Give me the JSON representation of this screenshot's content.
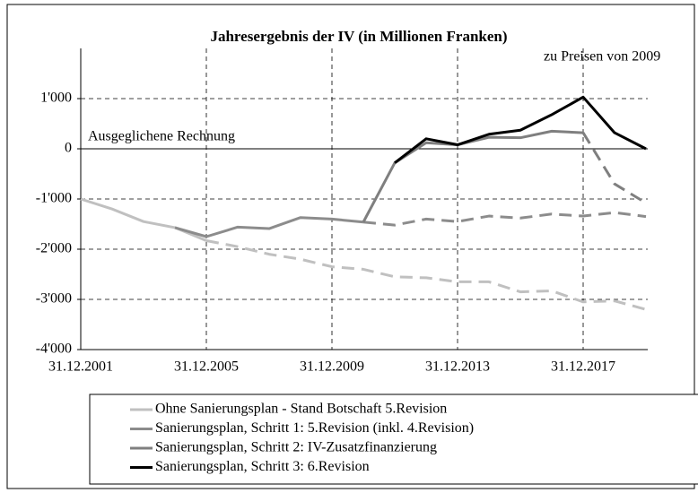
{
  "chart_data": {
    "type": "line",
    "title": "Jahresergebnis der IV (in Millionen Franken)",
    "subtitle": "zu Preisen von 2009",
    "annotation": "Ausgeglichene Rechnung",
    "categories": [
      "31.12.2001",
      null,
      null,
      null,
      "31.12.2005",
      null,
      null,
      null,
      "31.12.2009",
      null,
      null,
      null,
      "31.12.2013",
      null,
      null,
      null,
      "31.12.2017",
      null,
      null
    ],
    "ylim": [
      -4000,
      2000
    ],
    "yticks": [
      {
        "value": 1000,
        "label": "1'000"
      },
      0,
      {
        "value": -1000,
        "label": "-1'000"
      },
      {
        "value": -2000,
        "label": "-2'000"
      },
      {
        "value": -3000,
        "label": "-3'000"
      },
      {
        "value": -4000,
        "label": "-4'000"
      }
    ],
    "grid": true,
    "series": [
      {
        "name": "Ohne Sanierungsplan - Stand Botschaft 5.Revision",
        "color": "#c0c0c0",
        "dashed_from": 4,
        "values": [
          -1000,
          -1200,
          -1450,
          -1570,
          -1830,
          -1950,
          -2100,
          -2200,
          -2350,
          -2400,
          -2550,
          -2570,
          -2650,
          -2650,
          -2850,
          -2830,
          -3050,
          -3030,
          -3200
        ]
      },
      {
        "name": "Sanierungsplan, Schritt 1: 5.Revision (inkl. 4.Revision)",
        "color": "#8c8c8c",
        "dashed_from": 9,
        "values": [
          null,
          null,
          null,
          -1570,
          -1750,
          -1560,
          -1590,
          -1370,
          -1400,
          -1460,
          -1520,
          -1400,
          -1450,
          -1340,
          -1380,
          -1300,
          -1340,
          -1270,
          -1350
        ]
      },
      {
        "name": "Sanierungsplan, Schritt 2: IV-Zusatzfinanzierung",
        "color": "#7f7f7f",
        "dashed_from": 16,
        "values": [
          null,
          null,
          null,
          null,
          null,
          null,
          null,
          null,
          null,
          -1460,
          -280,
          120,
          80,
          230,
          220,
          350,
          320,
          -700,
          -1080
        ]
      },
      {
        "name": "Sanierungsplan, Schritt 3: 6.Revision",
        "color": "#000000",
        "values": [
          null,
          null,
          null,
          null,
          null,
          null,
          null,
          null,
          null,
          null,
          -280,
          200,
          80,
          290,
          370,
          680,
          1030,
          320,
          0
        ]
      }
    ]
  }
}
